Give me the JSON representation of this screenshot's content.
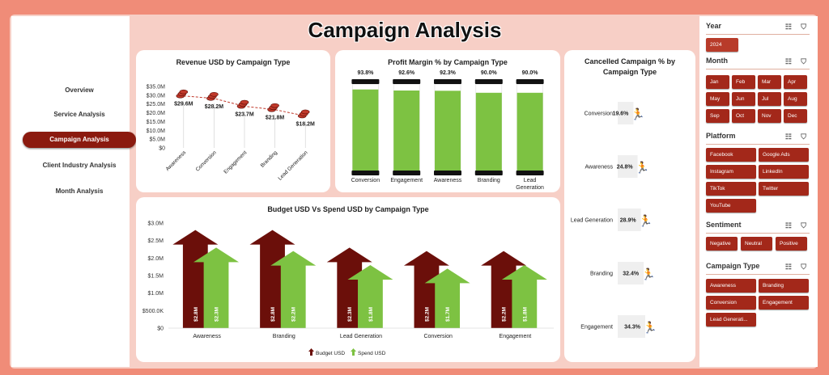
{
  "title": "Campaign Analysis",
  "nav": [
    {
      "label": "Overview",
      "active": false
    },
    {
      "label": "Service Analysis",
      "active": false
    },
    {
      "label": "Campaign Analysis",
      "active": true
    },
    {
      "label": "Client Industry Analysis",
      "active": false
    },
    {
      "label": "Month Analysis",
      "active": false
    }
  ],
  "slicers": {
    "year": {
      "label": "Year",
      "items": [
        "2024"
      ]
    },
    "month": {
      "label": "Month",
      "items": [
        "Jan",
        "Feb",
        "Mar",
        "Apr",
        "May",
        "Jun",
        "Jul",
        "Aug",
        "Sep",
        "Oct",
        "Nov",
        "Dec"
      ]
    },
    "platform": {
      "label": "Platform",
      "items": [
        "Facebook",
        "Google Ads",
        "Instagram",
        "LinkedIn",
        "TikTok",
        "Twitter",
        "YouTube"
      ]
    },
    "sentiment": {
      "label": "Sentiment",
      "items": [
        "Negative",
        "Neutral",
        "Positive"
      ]
    },
    "campaign_type": {
      "label": "Campaign Type",
      "items": [
        "Awareness",
        "Branding",
        "Conversion",
        "Engagement",
        "Lead Generati..."
      ]
    }
  },
  "chart_data": [
    {
      "id": "revenue",
      "type": "line",
      "title": "Revenue USD by Campaign Type",
      "categories": [
        "Awareness",
        "Conversion",
        "Engagement",
        "Branding",
        "Lead Generation"
      ],
      "values": [
        29.6,
        28.2,
        23.7,
        21.8,
        18.2
      ],
      "data_labels": [
        "$29.6M",
        "$28.2M",
        "$23.7M",
        "$21.8M",
        "$18.2M"
      ],
      "yticks": [
        "$0",
        "$5.0M",
        "$10.0M",
        "$15.0M",
        "$20.0M",
        "$25.0M",
        "$30.0M",
        "$35.0M"
      ],
      "ylim": [
        0,
        35
      ],
      "color": "#c0392b"
    },
    {
      "id": "profit",
      "type": "bar",
      "title": "Profit Margin % by Campaign Type",
      "categories": [
        "Conversion",
        "Engagement",
        "Awareness",
        "Branding",
        "Lead Generation"
      ],
      "values": [
        93.8,
        92.6,
        92.3,
        90.0,
        90.0
      ],
      "data_labels": [
        "93.8%",
        "92.6%",
        "92.3%",
        "90.0%",
        "90.0%"
      ],
      "ylim": [
        0,
        100
      ],
      "color": "#7dc242"
    },
    {
      "id": "cancelled",
      "type": "bar",
      "title": "Cancelled Campaign % by Campaign Type",
      "categories": [
        "Conversion",
        "Awareness",
        "Lead Generation",
        "Branding",
        "Engagement"
      ],
      "values": [
        19.6,
        24.8,
        28.9,
        32.4,
        34.3
      ],
      "data_labels": [
        "19.6%",
        "24.8%",
        "28.9%",
        "32.4%",
        "34.3%"
      ]
    },
    {
      "id": "budget",
      "type": "bar",
      "title": "Budget USD Vs Spend USD by Campaign Type",
      "categories": [
        "Awareness",
        "Branding",
        "Lead Generation",
        "Conversion",
        "Engagement"
      ],
      "series": [
        {
          "name": "Budget USD",
          "values": [
            2.8,
            2.8,
            2.3,
            2.2,
            2.2
          ],
          "labels": [
            "$2.8M",
            "$2.8M",
            "$2.3M",
            "$2.2M",
            "$2.2M"
          ],
          "color": "#6b0f0a"
        },
        {
          "name": "Spend USD",
          "values": [
            2.3,
            2.2,
            1.8,
            1.7,
            1.8
          ],
          "labels": [
            "$2.3M",
            "$2.2M",
            "$1.8M",
            "$1.7M",
            "$1.8M"
          ],
          "color": "#7dc242"
        }
      ],
      "yticks": [
        "$0",
        "$500.0K",
        "$1.0M",
        "$1.5M",
        "$2.0M",
        "$2.5M",
        "$3.0M"
      ],
      "ylim": [
        0,
        3.0
      ]
    }
  ]
}
